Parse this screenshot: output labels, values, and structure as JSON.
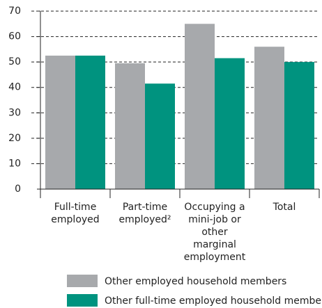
{
  "chart_data": {
    "type": "bar",
    "categories": [
      "Full-time employed",
      "Part-time employed²",
      "Occupying a mini-job or other marginal employment",
      "Total"
    ],
    "series": [
      {
        "name": "Other employed household members",
        "color": "#a7a9ac",
        "values": [
          52.5,
          49.5,
          65,
          56
        ]
      },
      {
        "name": "Other full-time employed household members",
        "color": "#00937f",
        "values": [
          52.5,
          41.5,
          51.5,
          50
        ]
      }
    ],
    "ylim": [
      0,
      70
    ],
    "yticks": [
      0,
      10,
      20,
      30,
      40,
      50,
      60,
      70
    ],
    "grid": true
  }
}
